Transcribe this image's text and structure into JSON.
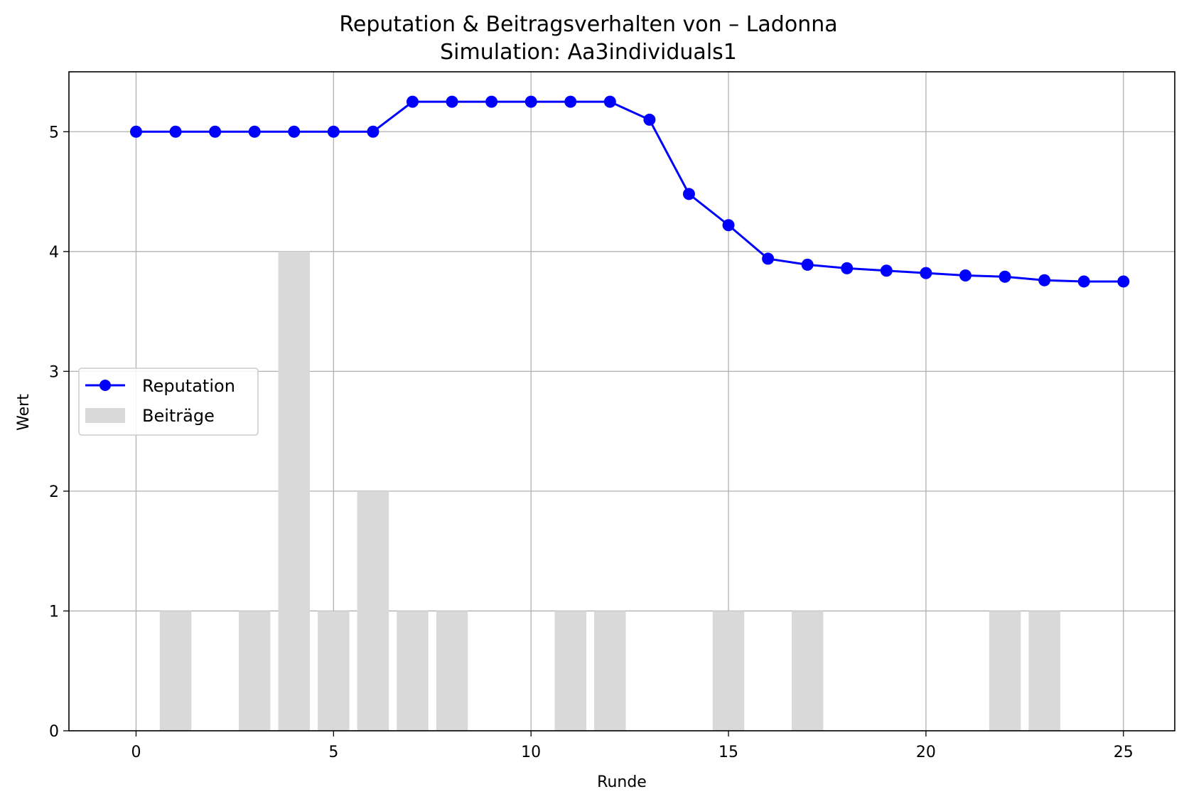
{
  "chart_data": {
    "type": "bar+line",
    "title": "Reputation & Beitragsverhalten von – Ladonna",
    "subtitle": "Simulation: Aa3individuals1",
    "xlabel": "Runde",
    "ylabel": "Wert",
    "xlim": [
      -1.7,
      26.3
    ],
    "ylim": [
      0,
      5.5
    ],
    "xticks": [
      0,
      5,
      10,
      15,
      20,
      25
    ],
    "yticks": [
      0,
      1,
      2,
      3,
      4,
      5
    ],
    "grid": true,
    "legend_position": "center-left",
    "series": [
      {
        "name": "Reputation",
        "kind": "line",
        "marker": "circle",
        "color": "#0000ff",
        "x": [
          0,
          1,
          2,
          3,
          4,
          5,
          6,
          7,
          8,
          9,
          10,
          11,
          12,
          13,
          14,
          15,
          16,
          17,
          18,
          19,
          20,
          21,
          22,
          23,
          24,
          25
        ],
        "values": [
          5.0,
          5.0,
          5.0,
          5.0,
          5.0,
          5.0,
          5.0,
          5.25,
          5.25,
          5.25,
          5.25,
          5.25,
          5.25,
          5.1,
          4.48,
          4.22,
          3.94,
          3.89,
          3.86,
          3.84,
          3.82,
          3.8,
          3.79,
          3.76,
          3.75,
          3.75
        ]
      },
      {
        "name": "Beiträge",
        "kind": "bar",
        "color": "#d9d9d9",
        "x": [
          0,
          1,
          2,
          3,
          4,
          5,
          6,
          7,
          8,
          9,
          10,
          11,
          12,
          13,
          14,
          15,
          16,
          17,
          18,
          19,
          20,
          21,
          22,
          23,
          24,
          25
        ],
        "values": [
          0,
          1,
          0,
          1,
          4,
          1,
          2,
          1,
          1,
          0,
          0,
          1,
          1,
          0,
          0,
          1,
          0,
          1,
          0,
          0,
          0,
          0,
          1,
          1,
          0,
          0
        ]
      }
    ]
  }
}
